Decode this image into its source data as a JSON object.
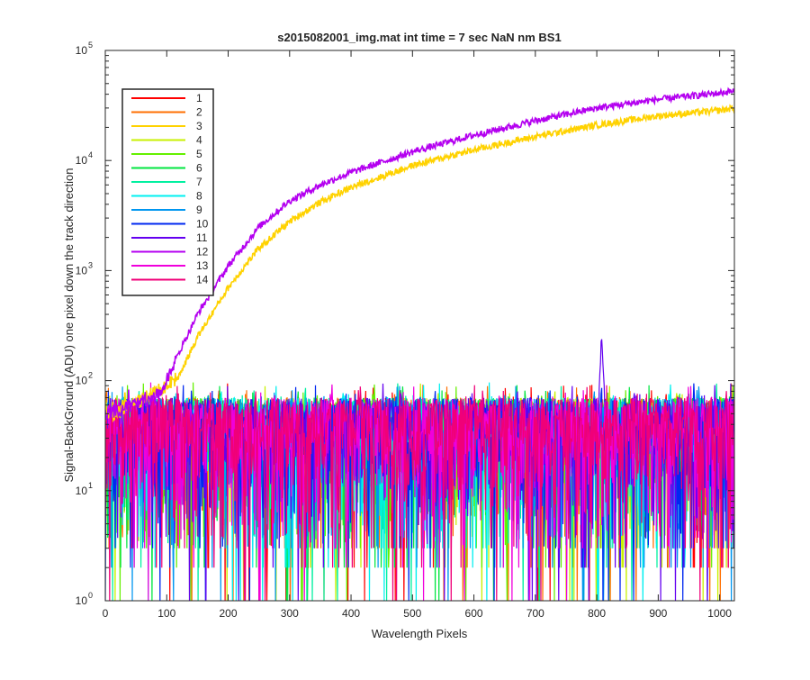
{
  "chart_data": {
    "type": "line",
    "title": "s2015082001_img.mat int time = 7 sec  NaN nm BS1",
    "xlabel": "Wavelength Pixels",
    "ylabel": "Signal-BackGround (ADU) one pixel down the track direction",
    "xlim": [
      0,
      1024
    ],
    "ylim": [
      1,
      100000
    ],
    "yscale": "log",
    "x_ticks": [
      "0",
      "100",
      "200",
      "300",
      "400",
      "500",
      "600",
      "700",
      "800",
      "900",
      "1000"
    ],
    "y_tick_exponents": [
      "0",
      "1",
      "2",
      "3",
      "4",
      "5"
    ],
    "y_tick_base": "10",
    "grid": false,
    "legend_position": "top-left",
    "noise_series_description_level": [
      10,
      80
    ],
    "series": [
      {
        "name": "1",
        "color": "#ff0000",
        "kind": "noise"
      },
      {
        "name": "2",
        "color": "#ff6f00",
        "kind": "noise"
      },
      {
        "name": "3",
        "color": "#ffd200",
        "kind": "ramp",
        "x": [
          0,
          100,
          120,
          150,
          200,
          250,
          300,
          350,
          400,
          500,
          600,
          700,
          800,
          900,
          1000,
          1024
        ],
        "y": [
          45,
          90,
          110,
          250,
          700,
          1600,
          2800,
          4200,
          5700,
          9000,
          12500,
          16500,
          21000,
          25500,
          28500,
          30000
        ]
      },
      {
        "name": "4",
        "color": "#c8f000",
        "kind": "noise"
      },
      {
        "name": "5",
        "color": "#64f000",
        "kind": "noise"
      },
      {
        "name": "6",
        "color": "#00e640",
        "kind": "noise"
      },
      {
        "name": "7",
        "color": "#00f0a0",
        "kind": "noise"
      },
      {
        "name": "8",
        "color": "#00f0f0",
        "kind": "noise"
      },
      {
        "name": "9",
        "color": "#0096f0",
        "kind": "noise"
      },
      {
        "name": "10",
        "color": "#0028f0",
        "kind": "noise"
      },
      {
        "name": "11",
        "color": "#6400f0",
        "kind": "noise_peak",
        "peak_x": 808,
        "peak_y": 240
      },
      {
        "name": "12",
        "color": "#b400f0",
        "kind": "ramp",
        "x": [
          0,
          80,
          100,
          120,
          150,
          200,
          250,
          300,
          350,
          400,
          500,
          600,
          700,
          800,
          900,
          1000,
          1024
        ],
        "y": [
          50,
          70,
          100,
          180,
          400,
          1100,
          2500,
          4300,
          6000,
          7800,
          12000,
          17000,
          23000,
          30000,
          36000,
          41000,
          43000
        ]
      },
      {
        "name": "13",
        "color": "#f000dc",
        "kind": "noise"
      },
      {
        "name": "14",
        "color": "#f00078",
        "kind": "noise"
      }
    ]
  }
}
